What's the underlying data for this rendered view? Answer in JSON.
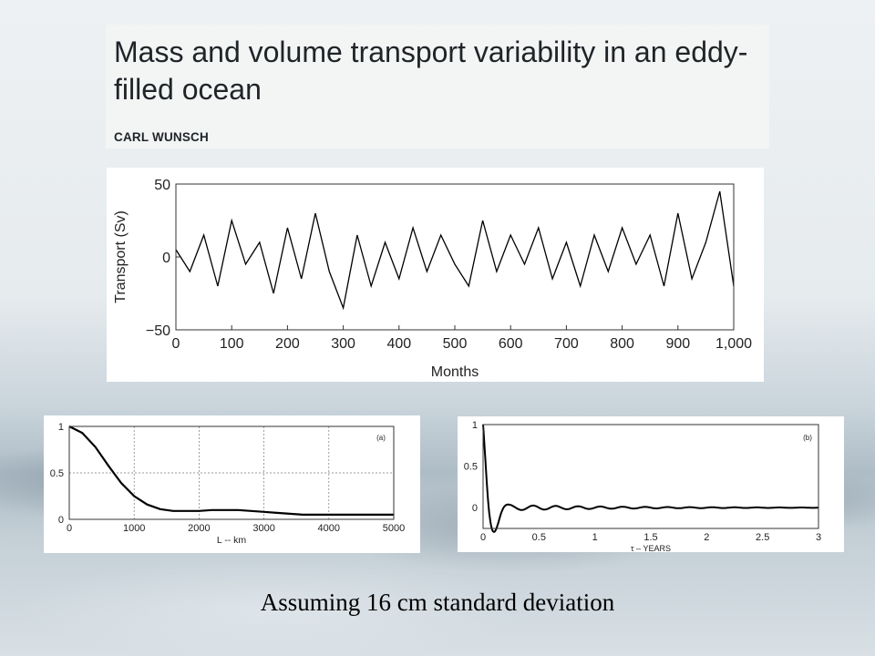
{
  "title": {
    "text": "Mass and volume transport variability in an eddy-filled ocean",
    "author": "CARL WUNSCH"
  },
  "caption": "Assuming 16 cm standard deviation",
  "chart_data": [
    {
      "type": "line",
      "ylabel": "Transport (Sv)",
      "xlabel": "Months",
      "xlim": [
        0,
        1000
      ],
      "ylim": [
        -50,
        50
      ],
      "x_ticks": [
        "0",
        "100",
        "200",
        "300",
        "400",
        "500",
        "600",
        "700",
        "800",
        "900",
        "1,000"
      ],
      "y_ticks": [
        "50",
        "0",
        "−50"
      ],
      "grid": false,
      "color": "#000000",
      "x": [
        0,
        25,
        50,
        75,
        100,
        125,
        150,
        175,
        200,
        225,
        250,
        275,
        300,
        325,
        350,
        375,
        400,
        425,
        450,
        475,
        500,
        525,
        550,
        575,
        600,
        625,
        650,
        675,
        700,
        725,
        750,
        775,
        800,
        825,
        850,
        875,
        900,
        925,
        950,
        975,
        1000
      ],
      "y": [
        5,
        -10,
        15,
        -20,
        25,
        -5,
        10,
        -25,
        20,
        -15,
        30,
        -10,
        -35,
        15,
        -20,
        10,
        -15,
        20,
        -10,
        15,
        -5,
        -20,
        25,
        -10,
        15,
        -5,
        20,
        -15,
        10,
        -20,
        15,
        -10,
        20,
        -5,
        15,
        -20,
        30,
        -15,
        10,
        45,
        -20
      ]
    },
    {
      "type": "line",
      "label": "(a)",
      "xlabel": "L -- km",
      "xlim": [
        0,
        5000
      ],
      "ylim": [
        0,
        1
      ],
      "x_ticks": [
        "0",
        "1000",
        "2000",
        "3000",
        "4000",
        "5000"
      ],
      "y_ticks": [
        "1",
        "0.5",
        "0"
      ],
      "grid": true,
      "color": "#000000",
      "x": [
        0,
        200,
        400,
        600,
        800,
        1000,
        1200,
        1400,
        1600,
        1800,
        2000,
        2200,
        2400,
        2600,
        2800,
        3000,
        3200,
        3400,
        3600,
        3800,
        4000,
        4200,
        4400,
        4600,
        4800,
        5000
      ],
      "y": [
        1.0,
        0.93,
        0.78,
        0.58,
        0.39,
        0.25,
        0.16,
        0.11,
        0.09,
        0.09,
        0.09,
        0.1,
        0.1,
        0.1,
        0.09,
        0.08,
        0.07,
        0.06,
        0.05,
        0.05,
        0.05,
        0.05,
        0.05,
        0.05,
        0.05,
        0.05
      ]
    },
    {
      "type": "line",
      "label": "(b)",
      "xlabel": "τ – YEARS",
      "xlim": [
        0,
        3
      ],
      "ylim": [
        -0.25,
        1
      ],
      "x_ticks": [
        "0",
        "0.5",
        "1",
        "1.5",
        "2",
        "2.5",
        "3"
      ],
      "y_ticks": [
        "1",
        "0.5",
        "0"
      ],
      "grid": false,
      "color": "#000000",
      "decay_time": 0.06,
      "period": 0.2,
      "floor_amplitude": 0.04,
      "floor_decay": 1.0
    }
  ]
}
